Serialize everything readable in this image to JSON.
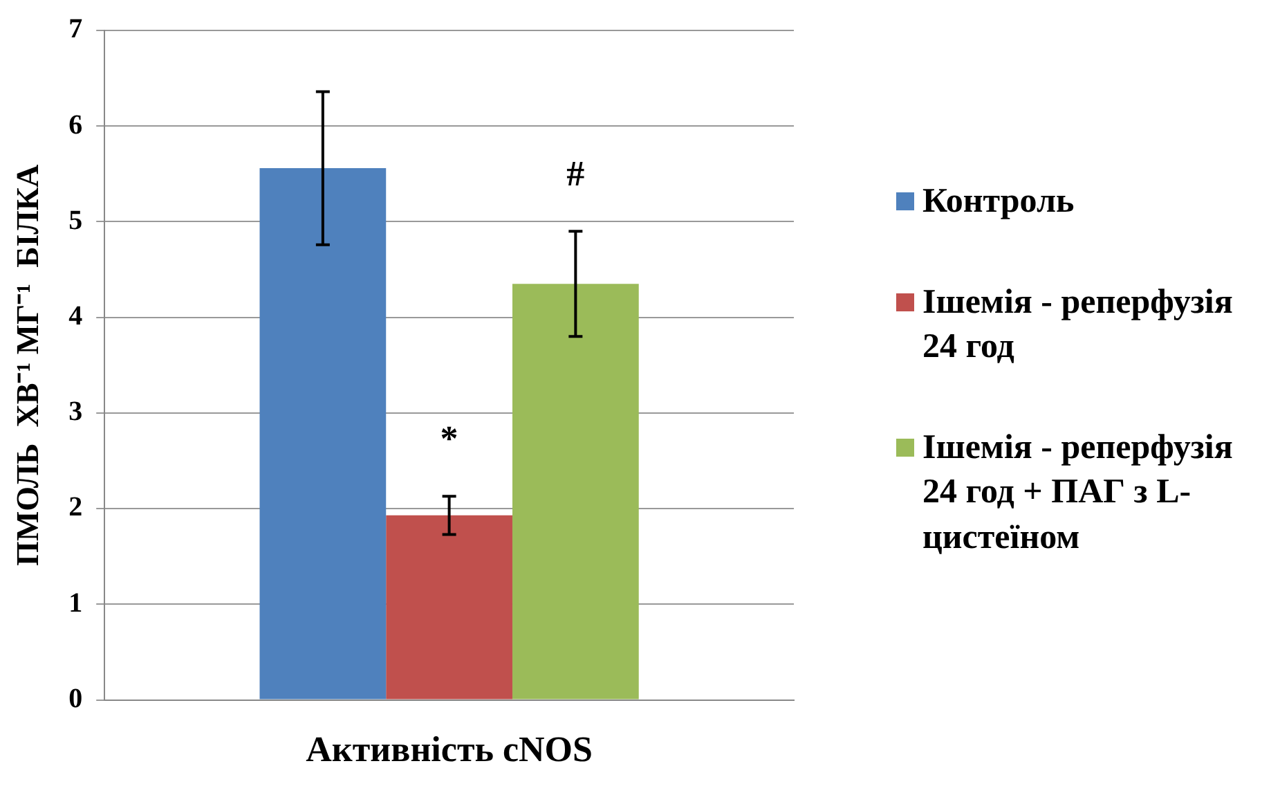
{
  "chart_data": {
    "type": "bar",
    "categories": [
      "Активність cNOS"
    ],
    "ylabel": "ПМОЛЬ  ХВ⁻¹ МГ⁻¹  БІЛКА",
    "series": [
      {
        "name": "Контроль",
        "color": "#4f81bd",
        "values": [
          5.56
        ],
        "errors": [
          0.8
        ]
      },
      {
        "name": "Ішемія - реперфузія 24 год",
        "color": "#c0504d",
        "values": [
          1.93
        ],
        "errors": [
          0.2
        ]
      },
      {
        "name": "Ішемія - реперфузія 24 год + ПАГ з L-цистеїном",
        "color": "#9bbb59",
        "values": [
          4.35
        ],
        "errors": [
          0.55
        ]
      }
    ],
    "ylim": [
      0,
      7
    ],
    "yticks": [
      0,
      1,
      2,
      3,
      4,
      5,
      6,
      7
    ],
    "grid": "y",
    "legend": "right",
    "annotations": [
      "*",
      "#"
    ]
  }
}
